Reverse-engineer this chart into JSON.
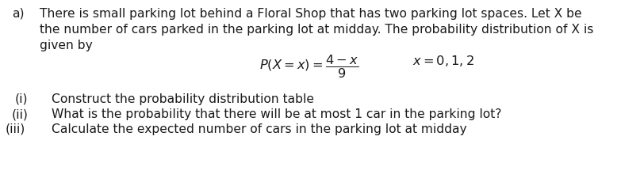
{
  "bg_color": "#ffffff",
  "text_color": "#1a1a1a",
  "part_a_label": "a)",
  "line1": "There is small parking lot behind a Floral Shop that has two parking lot spaces. Let X be",
  "line2": "the number of cars parked in the parking lot at midday. The probability distribution of X is",
  "line3": "given by",
  "formula_lhs": "$P(X = x) = \\dfrac{4 - x}{9}$",
  "formula_rhs": "$x = 0,1,2$",
  "sub_i_label": "(i)",
  "sub_i_text": "Construct the probability distribution table",
  "sub_ii_label": "(ii)",
  "sub_ii_text": "What is the probability that there will be at most 1 car in the parking lot?",
  "sub_iii_label": "(iii)",
  "sub_iii_text": "Calculate the expected number of cars in the parking lot at midday",
  "font_size": 11.2,
  "fig_width": 7.83,
  "fig_height": 2.25,
  "dpi": 100
}
